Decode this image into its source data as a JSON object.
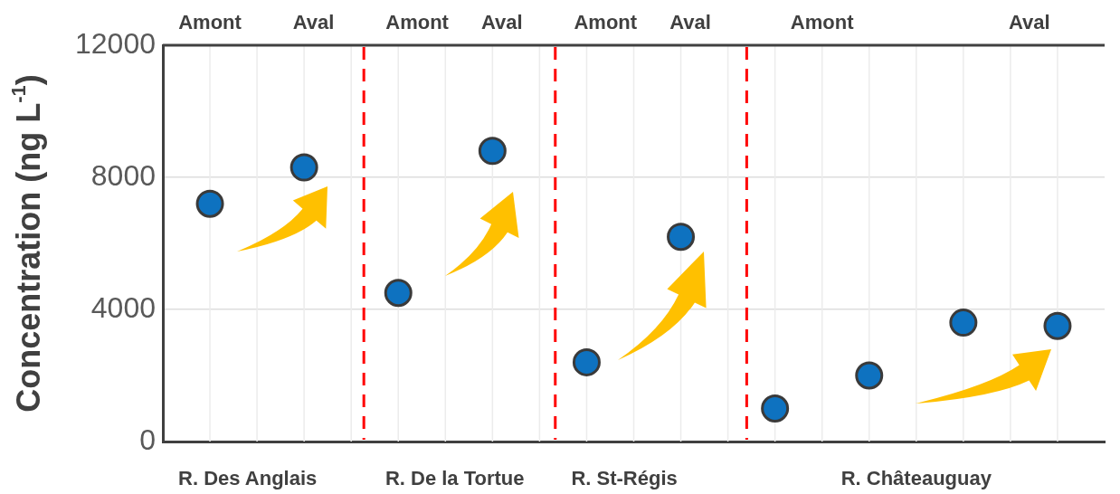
{
  "chart_data": {
    "type": "scatter",
    "ylabel": "Concentration (ng L$^{-1}$)",
    "categories": [
      null,
      null,
      null,
      null,
      null,
      null,
      null,
      null,
      null,
      null
    ],
    "series": [
      {
        "color": "#0e72c0",
        "values": [
          7200,
          8300,
          4500,
          8800,
          2400,
          6200,
          1000,
          2000,
          3600,
          3500
        ]
      }
    ],
    "ylim": [
      0,
      12000
    ],
    "yticks": [
      0,
      4000,
      8000,
      12000
    ],
    "tick_labels": "y",
    "grid": true,
    "marker": "circle",
    "annotations": [
      "Amont",
      "Aval",
      "Amont",
      "Aval",
      "Amont",
      "Aval",
      "Amont",
      "Aval",
      "R. Des Anglais",
      "R. De la Tortue",
      "R. St-Régis",
      "R. Châteauguay"
    ]
  }
}
